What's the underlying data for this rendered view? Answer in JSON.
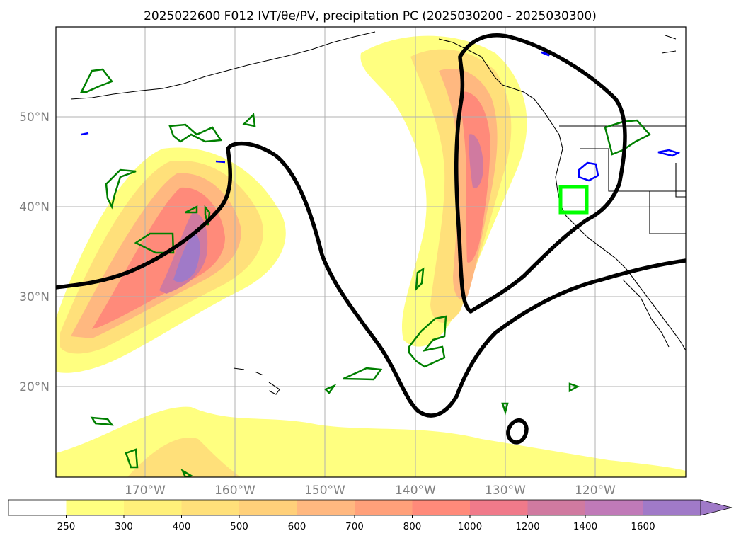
{
  "title": "2025022600 F012 IVT/θe/PV, precipitation PC (2025030200 - 2025030300)",
  "latitude_labels": [
    "50°N",
    "40°N",
    "30°N",
    "20°N"
  ],
  "longitude_labels": [
    "170°W",
    "160°W",
    "150°W",
    "140°W",
    "130°W",
    "120°W"
  ],
  "colorbar": {
    "labels": [
      "250",
      "300",
      "400",
      "500",
      "600",
      "700",
      "800",
      "1000",
      "1200",
      "1400",
      "1600"
    ],
    "colors": [
      "#ffffff",
      "#ffff80",
      "#fff07a",
      "#ffe07a",
      "#ffd07a",
      "#ffb880",
      "#ffa07a",
      "#ff8a7a",
      "#f07a8a",
      "#d07aa0",
      "#c07ab8",
      "#a07ac8"
    ]
  },
  "overlay_colors": {
    "theta_e_contour": "#000000",
    "pv_contour": "#008000",
    "precip_contour": "#0000ff",
    "highlight_box": "#00ff00"
  }
}
